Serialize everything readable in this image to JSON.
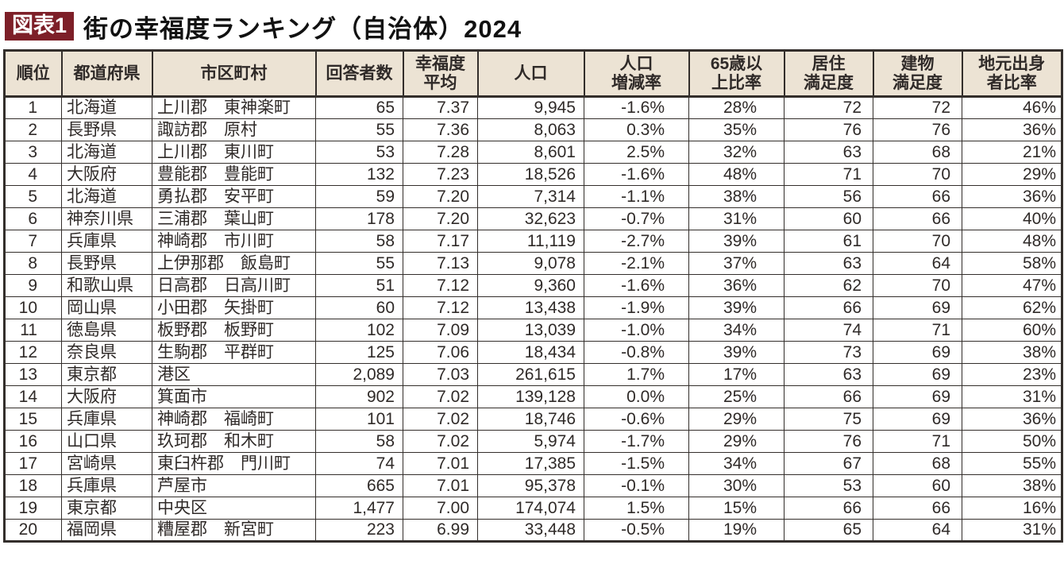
{
  "figure": {
    "badge": "図表1",
    "title": "街の幸福度ランキング（自治体）2024"
  },
  "colors": {
    "badge_bg": "#7d1f28",
    "header_bg": "#ece3d4",
    "border": "#332e2b",
    "text": "#2f2a28"
  },
  "chart_data": {
    "type": "table",
    "title": "街の幸福度ランキング（自治体）2024",
    "columns": [
      "順位",
      "都道府県",
      "市区町村",
      "回答者数",
      "幸福度\n平均",
      "人口",
      "人口\n増減率",
      "65歳以\n上比率",
      "居住\n満足度",
      "建物\n満足度",
      "地元出身\n者比率"
    ],
    "rows": [
      [
        "1",
        "北海道",
        "上川郡　東神楽町",
        "65",
        "7.37",
        "9,945",
        "-1.6%",
        "28%",
        "72",
        "72",
        "46%"
      ],
      [
        "2",
        "長野県",
        "諏訪郡　原村",
        "55",
        "7.36",
        "8,063",
        "0.3%",
        "35%",
        "76",
        "76",
        "36%"
      ],
      [
        "3",
        "北海道",
        "上川郡　東川町",
        "53",
        "7.28",
        "8,601",
        "2.5%",
        "32%",
        "63",
        "68",
        "21%"
      ],
      [
        "4",
        "大阪府",
        "豊能郡　豊能町",
        "132",
        "7.23",
        "18,526",
        "-1.6%",
        "48%",
        "71",
        "70",
        "29%"
      ],
      [
        "5",
        "北海道",
        "勇払郡　安平町",
        "59",
        "7.20",
        "7,314",
        "-1.1%",
        "38%",
        "56",
        "66",
        "36%"
      ],
      [
        "6",
        "神奈川県",
        "三浦郡　葉山町",
        "178",
        "7.20",
        "32,623",
        "-0.7%",
        "31%",
        "60",
        "66",
        "40%"
      ],
      [
        "7",
        "兵庫県",
        "神崎郡　市川町",
        "58",
        "7.17",
        "11,119",
        "-2.7%",
        "39%",
        "61",
        "70",
        "48%"
      ],
      [
        "8",
        "長野県",
        "上伊那郡　飯島町",
        "55",
        "7.13",
        "9,078",
        "-2.1%",
        "37%",
        "63",
        "64",
        "58%"
      ],
      [
        "9",
        "和歌山県",
        "日高郡　日高川町",
        "51",
        "7.12",
        "9,360",
        "-1.6%",
        "36%",
        "62",
        "70",
        "47%"
      ],
      [
        "10",
        "岡山県",
        "小田郡　矢掛町",
        "60",
        "7.12",
        "13,438",
        "-1.9%",
        "39%",
        "66",
        "69",
        "62%"
      ],
      [
        "11",
        "徳島県",
        "板野郡　板野町",
        "102",
        "7.09",
        "13,039",
        "-1.0%",
        "34%",
        "74",
        "71",
        "60%"
      ],
      [
        "12",
        "奈良県",
        "生駒郡　平群町",
        "125",
        "7.06",
        "18,434",
        "-0.8%",
        "39%",
        "73",
        "69",
        "38%"
      ],
      [
        "13",
        "東京都",
        "港区",
        "2,089",
        "7.03",
        "261,615",
        "1.7%",
        "17%",
        "63",
        "69",
        "23%"
      ],
      [
        "14",
        "大阪府",
        "箕面市",
        "902",
        "7.02",
        "139,128",
        "0.0%",
        "25%",
        "66",
        "69",
        "31%"
      ],
      [
        "15",
        "兵庫県",
        "神崎郡　福崎町",
        "101",
        "7.02",
        "18,746",
        "-0.6%",
        "29%",
        "75",
        "69",
        "36%"
      ],
      [
        "16",
        "山口県",
        "玖珂郡　和木町",
        "58",
        "7.02",
        "5,974",
        "-1.7%",
        "29%",
        "76",
        "71",
        "50%"
      ],
      [
        "17",
        "宮崎県",
        "東臼杵郡　門川町",
        "74",
        "7.01",
        "17,385",
        "-1.5%",
        "34%",
        "67",
        "68",
        "55%"
      ],
      [
        "18",
        "兵庫県",
        "芦屋市",
        "665",
        "7.01",
        "95,378",
        "-0.1%",
        "30%",
        "53",
        "60",
        "38%"
      ],
      [
        "19",
        "東京都",
        "中央区",
        "1,477",
        "7.00",
        "174,074",
        "1.5%",
        "15%",
        "66",
        "66",
        "16%"
      ],
      [
        "20",
        "福岡県",
        "糟屋郡　新宮町",
        "223",
        "6.99",
        "33,448",
        "-0.5%",
        "19%",
        "65",
        "64",
        "31%"
      ]
    ]
  }
}
